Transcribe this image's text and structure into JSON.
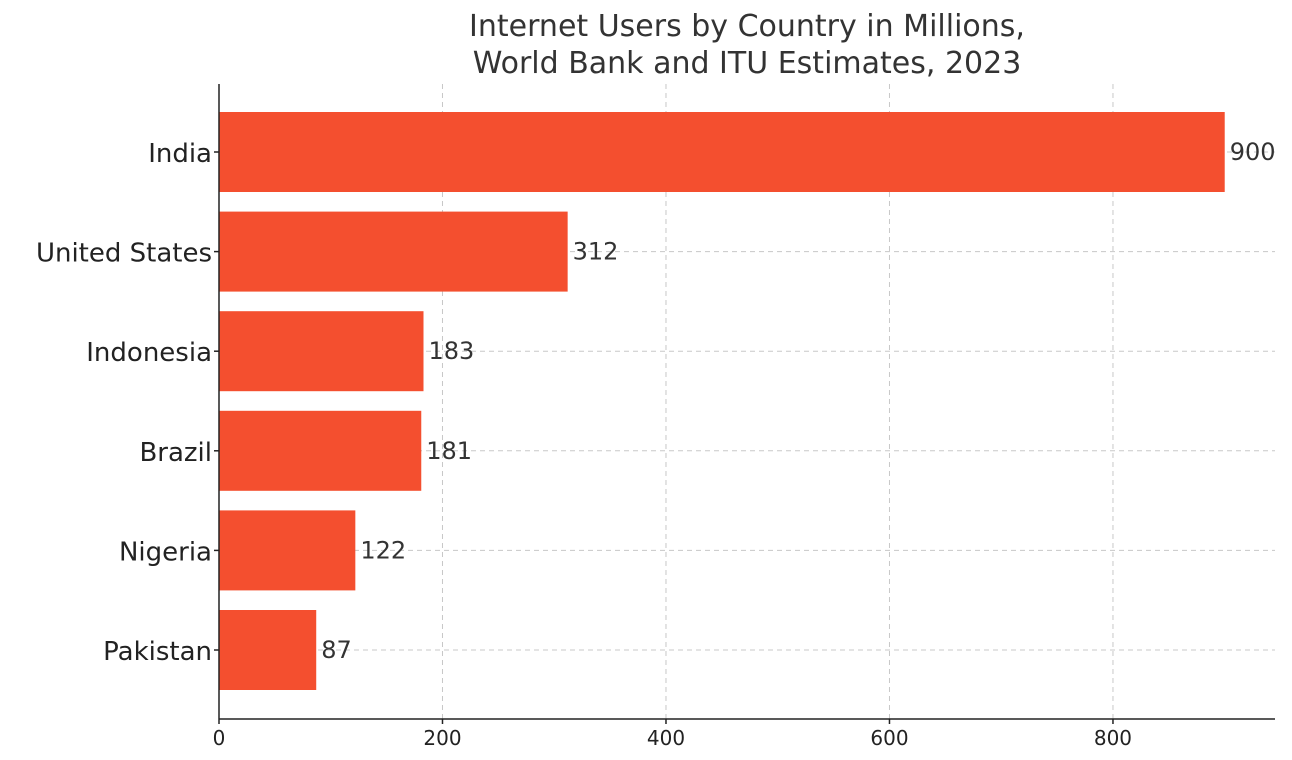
{
  "chart_data": {
    "type": "bar",
    "orientation": "horizontal",
    "title": "Internet Users by Country in Millions,\nWorld Bank and ITU Estimates, 2023",
    "title_lines": [
      "Internet Users by Country in Millions,",
      "World Bank and ITU Estimates, 2023"
    ],
    "categories": [
      "India",
      "United States",
      "Indonesia",
      "Brazil",
      "Nigeria",
      "Pakistan"
    ],
    "values": [
      900,
      312,
      183,
      181,
      122,
      87
    ],
    "value_labels": [
      "900",
      "312",
      "183",
      "181",
      "122",
      "87"
    ],
    "x_ticks": [
      0,
      200,
      400,
      600,
      800
    ],
    "x_tick_labels": [
      "0",
      "200",
      "400",
      "600",
      "800"
    ],
    "xlim": [
      0,
      945
    ],
    "xlabel": "",
    "ylabel": "",
    "grid": true,
    "legend": "none",
    "bar_color": "#f44f2f"
  }
}
